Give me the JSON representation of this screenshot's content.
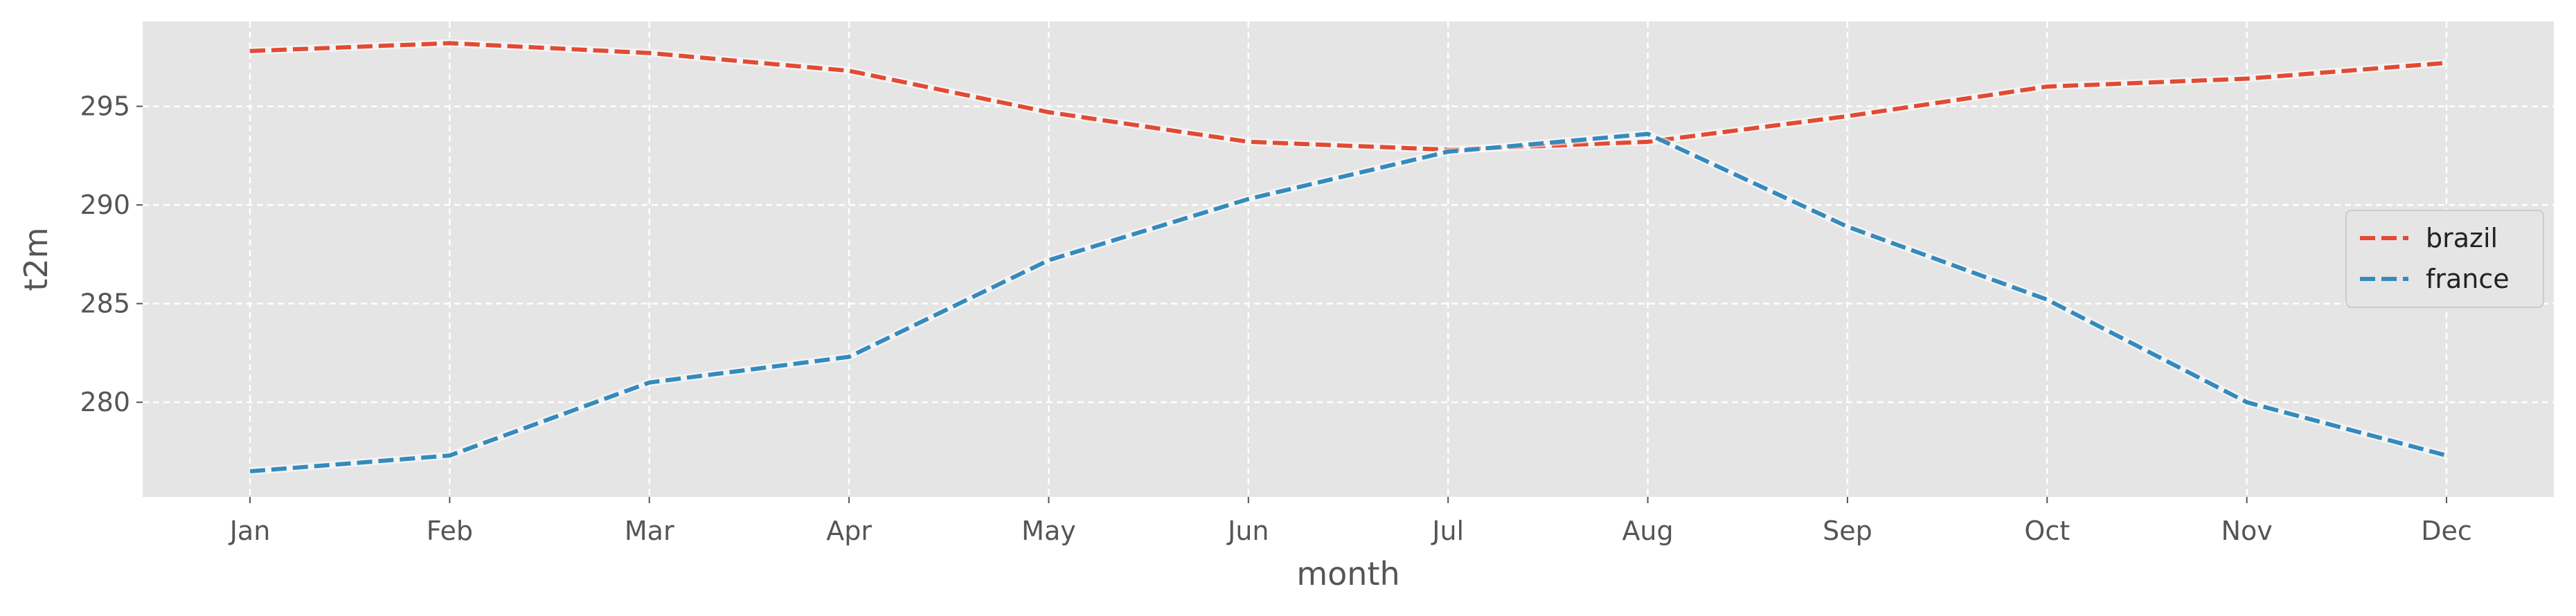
{
  "chart_data": {
    "type": "line",
    "title": "",
    "xlabel": "month",
    "ylabel": "t2m",
    "categories": [
      "Jan",
      "Feb",
      "Mar",
      "Apr",
      "May",
      "Jun",
      "Jul",
      "Aug",
      "Sep",
      "Oct",
      "Nov",
      "Dec"
    ],
    "ylim": [
      275.2,
      299.3
    ],
    "yticks": [
      280,
      285,
      290,
      295
    ],
    "grid": true,
    "legend_position": "center-right",
    "series": [
      {
        "name": "brazil",
        "color": "#E24A33",
        "line_style": "dashed",
        "values": [
          297.8,
          298.2,
          297.7,
          296.8,
          294.7,
          293.2,
          292.8,
          293.2,
          294.5,
          296.0,
          296.4,
          297.2
        ]
      },
      {
        "name": "france",
        "color": "#348ABD",
        "line_style": "dashed",
        "values": [
          276.5,
          277.3,
          281.0,
          282.3,
          287.2,
          290.3,
          292.7,
          293.6,
          288.9,
          285.2,
          280.0,
          277.3
        ]
      }
    ],
    "colors": {
      "plot_background": "#E5E5E5",
      "grid": "#FFFFFF",
      "tick_text": "#555555",
      "label_text": "#555555"
    }
  }
}
